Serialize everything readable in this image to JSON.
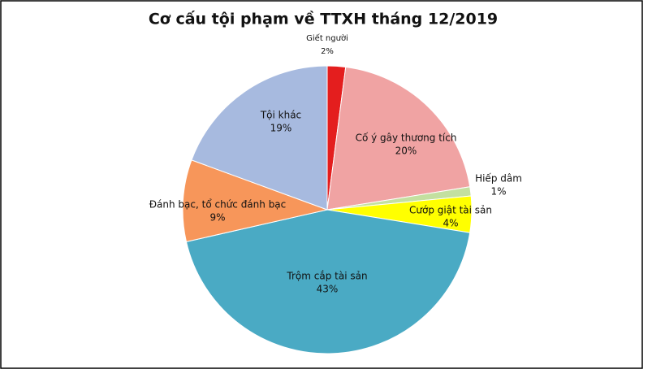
{
  "chart_data": {
    "type": "pie",
    "title": "Cơ cấu tội phạm về TTXH tháng 12/2019",
    "categories": [
      "Giết người",
      "Cố ý gây thương tích",
      "Hiếp dâm",
      "Cướp giật tài sản",
      "Trộm cắp tài sản",
      "Đánh bạc, tổ chức đánh bạc",
      "Tội khác"
    ],
    "values": [
      2,
      20,
      1,
      4,
      43,
      9,
      19
    ],
    "value_labels": [
      "2%",
      "20%",
      "1%",
      "4%",
      "43%",
      "9%",
      "19%"
    ],
    "colors": [
      "#e41e1e",
      "#f0a3a3",
      "#c3e0a0",
      "#ffff00",
      "#4aaac4",
      "#f7965a",
      "#a7badf"
    ]
  }
}
